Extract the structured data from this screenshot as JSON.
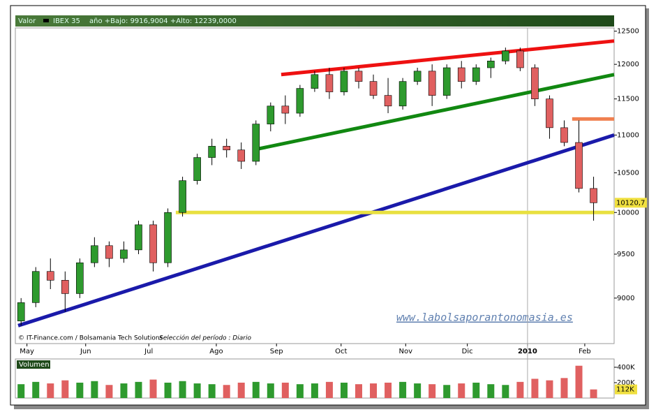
{
  "chart_data": {
    "type": "candlestick",
    "header": {
      "label": "Valor",
      "symbol": "IBEX 35",
      "range": "año +Bajo: 9916,9004 +Alto: 12239,0000"
    },
    "credit": "© IT-Finance.com / Bolsamania Tech Solutions",
    "period": "Selección del período : Diario",
    "watermark": "www.labolsaporantonomasia.es",
    "price_label": "10120,7",
    "log_scale": true,
    "up_color": "#2e9a2e",
    "down_color": "#e06060",
    "x": [
      1,
      6,
      11,
      16,
      21,
      26,
      31,
      36,
      41,
      46,
      51,
      56,
      61,
      66,
      71,
      76,
      81,
      86,
      91,
      96,
      101,
      106,
      111,
      116,
      121,
      126,
      131,
      136,
      141,
      146,
      151,
      156,
      161,
      166,
      171,
      176,
      181,
      186,
      191,
      196
    ],
    "open": [
      8750,
      8950,
      9300,
      9200,
      9050,
      9400,
      9600,
      9450,
      9550,
      9850,
      9400,
      10000,
      10400,
      10700,
      10850,
      10800,
      10650,
      11150,
      11400,
      11300,
      11650,
      11850,
      11600,
      11900,
      11750,
      11550,
      11400,
      11750,
      11900,
      11550,
      11950,
      11750,
      11950,
      12050,
      12200,
      11950,
      11500,
      11100,
      10900,
      10300
    ],
    "high": [
      9000,
      9350,
      9450,
      9300,
      9450,
      9700,
      9650,
      9650,
      9900,
      9900,
      10050,
      10450,
      10750,
      10950,
      10950,
      10900,
      11200,
      11450,
      11550,
      11700,
      11900,
      11950,
      11950,
      11950,
      11850,
      11800,
      11800,
      11950,
      12000,
      12000,
      12050,
      12000,
      12100,
      12250,
      12250,
      12000,
      11550,
      11200,
      11200,
      10450
    ],
    "low": [
      8700,
      8900,
      9100,
      8850,
      9000,
      9350,
      9350,
      9400,
      9500,
      9300,
      9350,
      9950,
      10350,
      10600,
      10700,
      10550,
      10600,
      11050,
      11150,
      11250,
      11600,
      11500,
      11550,
      11650,
      11500,
      11300,
      11350,
      11700,
      11400,
      11500,
      11650,
      11700,
      11800,
      12000,
      11900,
      11400,
      10950,
      10850,
      10250,
      9900
    ],
    "close": [
      8950,
      9300,
      9200,
      9050,
      9400,
      9600,
      9450,
      9550,
      9850,
      9400,
      10000,
      10400,
      10700,
      10850,
      10800,
      10650,
      11150,
      11400,
      11300,
      11650,
      11850,
      11600,
      11900,
      11750,
      11550,
      11400,
      11750,
      11900,
      11550,
      11950,
      11750,
      11950,
      12050,
      12200,
      11950,
      11500,
      11100,
      10900,
      10300,
      10120.7
    ],
    "xlim": [
      0,
      203
    ],
    "xticks": [
      {
        "value": 3,
        "label": "May"
      },
      {
        "value": 23,
        "label": "Jun"
      },
      {
        "value": 44.5,
        "label": "Jul"
      },
      {
        "value": 67.5,
        "label": "Ago"
      },
      {
        "value": 88,
        "label": "Sep"
      },
      {
        "value": 110,
        "label": "Oct"
      },
      {
        "value": 132,
        "label": "Nov"
      },
      {
        "value": 153,
        "label": "Dic"
      },
      {
        "value": 173.5,
        "label": "2010"
      },
      {
        "value": 193,
        "label": "Feb"
      }
    ],
    "ylim": [
      8510,
      12550
    ],
    "yticks": [
      9000,
      9500,
      10000,
      10500,
      11000,
      11500,
      12000,
      12500
    ],
    "overlays": [
      {
        "color": "#ee1111",
        "x": [
          89.6,
          203
        ],
        "y": [
          11850,
          12350
        ]
      },
      {
        "color": "#118811",
        "x": [
          80,
          203
        ],
        "y": [
          10800,
          11850
        ]
      },
      {
        "color": "#1a1aaa",
        "x": [
          0,
          203
        ],
        "y": [
          8700,
          11000
        ]
      },
      {
        "color": "#e8e040",
        "x": [
          53.7,
          203
        ],
        "y": [
          10000,
          10000
        ]
      },
      {
        "color": "#f08050",
        "x": [
          188.7,
          203
        ],
        "y": [
          11220,
          11220
        ]
      }
    ],
    "volume": {
      "title": "Volumen",
      "values": [
        180,
        210,
        190,
        230,
        200,
        220,
        170,
        190,
        210,
        240,
        200,
        220,
        190,
        180,
        170,
        200,
        210,
        190,
        200,
        180,
        190,
        210,
        200,
        180,
        190,
        200,
        210,
        190,
        180,
        170,
        190,
        200,
        180,
        170,
        210,
        250,
        230,
        260,
        420,
        112
      ],
      "ylim": [
        0,
        490
      ],
      "yticks": [
        {
          "value": 200,
          "label": "200K"
        },
        {
          "value": 400,
          "label": "400K"
        }
      ],
      "current_label": "112K"
    }
  }
}
